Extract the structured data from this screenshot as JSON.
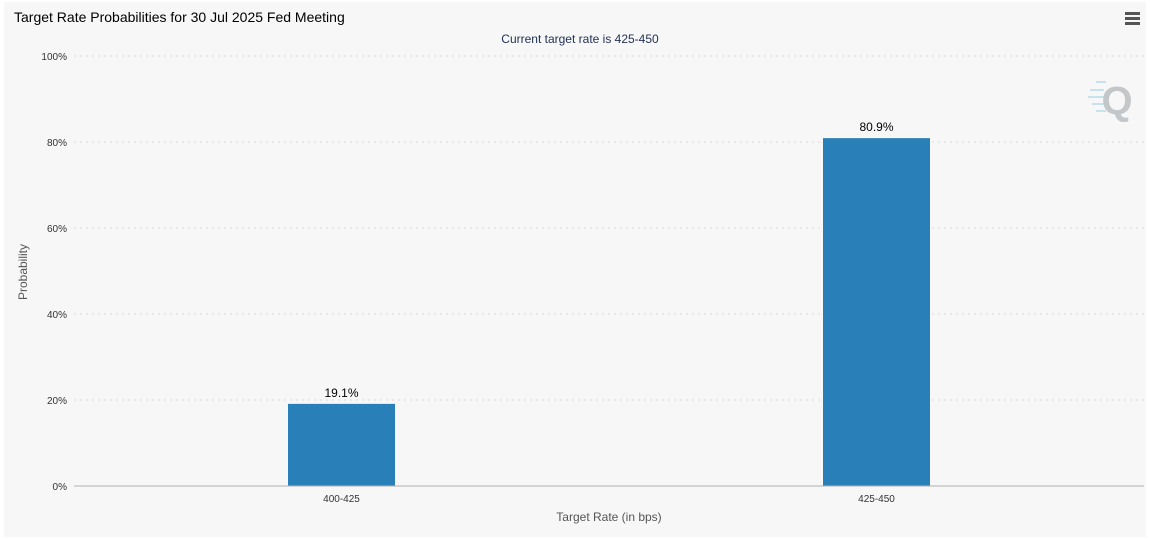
{
  "header": {
    "title": "Target Rate Probabilities for 30 Jul 2025 Fed Meeting",
    "menu_icon": "hamburger-menu-icon"
  },
  "watermark": {
    "icon": "quikstrike-q-logo-icon",
    "letter": "Q"
  },
  "colors": {
    "bar": "#2980b9",
    "background": "#f7f7f7",
    "grid": "#d8d8d8",
    "axis": "#b0b0b0",
    "subtitle": "#223355"
  },
  "chart_data": {
    "type": "bar",
    "title": "Target Rate Probabilities for 30 Jul 2025 Fed Meeting",
    "subtitle": "Current target rate is 425-450",
    "xlabel": "Target Rate (in bps)",
    "ylabel": "Probability",
    "categories": [
      "400-425",
      "425-450"
    ],
    "values": [
      19.1,
      80.9
    ],
    "data_labels": [
      "19.1%",
      "80.9%"
    ],
    "ylim": [
      0,
      100
    ],
    "yticks": [
      0,
      20,
      40,
      60,
      80,
      100
    ],
    "ytick_labels": [
      "0%",
      "20%",
      "40%",
      "60%",
      "80%",
      "100%"
    ],
    "grid": true,
    "legend": "none"
  }
}
